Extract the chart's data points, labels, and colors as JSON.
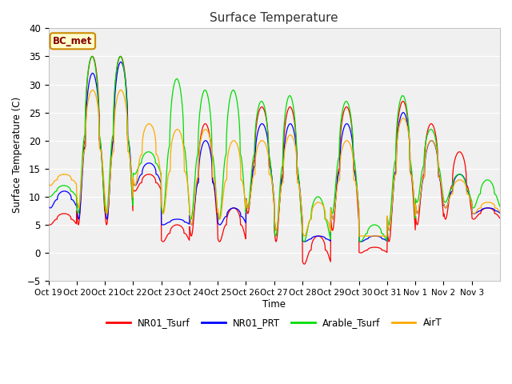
{
  "title": "Surface Temperature",
  "ylabel": "Surface Temperature (C)",
  "xlabel": "Time",
  "ylim": [
    -5,
    40
  ],
  "yticks": [
    -5,
    0,
    5,
    10,
    15,
    20,
    25,
    30,
    35,
    40
  ],
  "fig_bg_color": "#ffffff",
  "plot_bg_color": "#f0f0f0",
  "series_colors": {
    "NR01_Tsurf": "#ff0000",
    "NR01_PRT": "#0000ff",
    "Arable_Tsurf": "#00dd00",
    "AirT": "#ffaa00"
  },
  "xtick_labels": [
    "Oct 19",
    "Oct 20",
    "Oct 21",
    "Oct 22",
    "Oct 23",
    "Oct 24",
    "Oct 25",
    "Oct 26",
    "Oct 27",
    "Oct 28",
    "Oct 29",
    "Oct 30",
    "Oct 31",
    "Nov 1",
    "Nov 2",
    "Nov 3"
  ],
  "annotation": "BC_met",
  "legend_entries": [
    "NR01_Tsurf",
    "NR01_PRT",
    "Arable_Tsurf",
    "AirT"
  ]
}
